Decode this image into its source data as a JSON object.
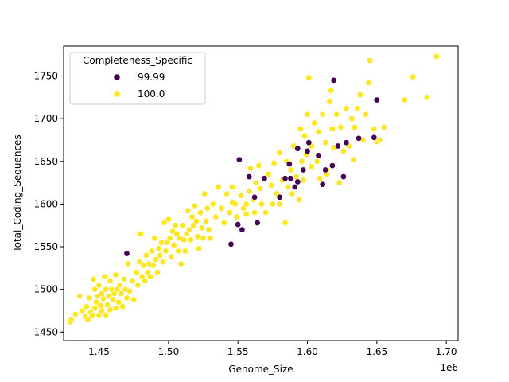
{
  "chart_data": {
    "type": "scatter",
    "xlabel": "Genome_Size",
    "ylabel": "Total_Coding_Sequences",
    "x_offset_label": "1e6",
    "xlim": [
      1.4245,
      1.7085
    ],
    "ylim": [
      1440,
      1785
    ],
    "x_ticks": [
      1.45,
      1.5,
      1.55,
      1.6,
      1.65,
      1.7
    ],
    "x_tick_labels": [
      "1.45",
      "1.50",
      "1.55",
      "1.60",
      "1.65",
      "1.70"
    ],
    "y_ticks": [
      1450,
      1500,
      1550,
      1600,
      1650,
      1700,
      1750
    ],
    "y_tick_labels": [
      "1450",
      "1500",
      "1550",
      "1600",
      "1650",
      "1700",
      "1750"
    ],
    "grid": false,
    "legend": {
      "title": "Completeness_Specific",
      "placement": "top-left",
      "entries": [
        "99.99",
        "100.0"
      ]
    },
    "series": [
      {
        "name": "99.99",
        "color": "#440154",
        "points": [
          [
            1.47,
            1542
          ],
          [
            1.545,
            1553
          ],
          [
            1.55,
            1576
          ],
          [
            1.553,
            1570
          ],
          [
            1.558,
            1632
          ],
          [
            1.562,
            1608
          ],
          [
            1.564,
            1578
          ],
          [
            1.551,
            1652
          ],
          [
            1.569,
            1630
          ],
          [
            1.58,
            1608
          ],
          [
            1.584,
            1630
          ],
          [
            1.588,
            1630
          ],
          [
            1.591,
            1620
          ],
          [
            1.593,
            1626
          ],
          [
            1.593,
            1665
          ],
          [
            1.597,
            1640
          ],
          [
            1.6,
            1662
          ],
          [
            1.601,
            1672
          ],
          [
            1.608,
            1657
          ],
          [
            1.611,
            1623
          ],
          [
            1.613,
            1640
          ],
          [
            1.618,
            1645
          ],
          [
            1.619,
            1745
          ],
          [
            1.622,
            1668
          ],
          [
            1.626,
            1632
          ],
          [
            1.628,
            1672
          ],
          [
            1.637,
            1677
          ],
          [
            1.648,
            1678
          ],
          [
            1.65,
            1722
          ],
          [
            1.587,
            1647
          ]
        ]
      },
      {
        "name": "100.0",
        "color": "#fde725",
        "points": [
          [
            1.429,
            1462
          ],
          [
            1.43,
            1465
          ],
          [
            1.433,
            1471
          ],
          [
            1.436,
            1492
          ],
          [
            1.438,
            1475
          ],
          [
            1.44,
            1468
          ],
          [
            1.441,
            1480
          ],
          [
            1.442,
            1465
          ],
          [
            1.443,
            1490
          ],
          [
            1.444,
            1473
          ],
          [
            1.445,
            1470
          ],
          [
            1.446,
            1512
          ],
          [
            1.447,
            1500
          ],
          [
            1.447,
            1478
          ],
          [
            1.448,
            1485
          ],
          [
            1.449,
            1492
          ],
          [
            1.45,
            1470
          ],
          [
            1.45,
            1505
          ],
          [
            1.451,
            1481
          ],
          [
            1.452,
            1495
          ],
          [
            1.452,
            1475
          ],
          [
            1.453,
            1489
          ],
          [
            1.454,
            1515
          ],
          [
            1.455,
            1470
          ],
          [
            1.455,
            1500
          ],
          [
            1.456,
            1482
          ],
          [
            1.457,
            1492
          ],
          [
            1.458,
            1476
          ],
          [
            1.458,
            1510
          ],
          [
            1.459,
            1500
          ],
          [
            1.46,
            1488
          ],
          [
            1.461,
            1495
          ],
          [
            1.462,
            1478
          ],
          [
            1.462,
            1517
          ],
          [
            1.463,
            1500
          ],
          [
            1.464,
            1485
          ],
          [
            1.465,
            1505
          ],
          [
            1.466,
            1495
          ],
          [
            1.467,
            1480
          ],
          [
            1.468,
            1512
          ],
          [
            1.469,
            1500
          ],
          [
            1.47,
            1490
          ],
          [
            1.471,
            1530
          ],
          [
            1.472,
            1498
          ],
          [
            1.474,
            1510
          ],
          [
            1.475,
            1488
          ],
          [
            1.477,
            1520
          ],
          [
            1.478,
            1505
          ],
          [
            1.479,
            1532
          ],
          [
            1.48,
            1565
          ],
          [
            1.481,
            1515
          ],
          [
            1.482,
            1528
          ],
          [
            1.483,
            1510
          ],
          [
            1.484,
            1540
          ],
          [
            1.485,
            1520
          ],
          [
            1.486,
            1530
          ],
          [
            1.487,
            1515
          ],
          [
            1.488,
            1545
          ],
          [
            1.489,
            1528
          ],
          [
            1.49,
            1560
          ],
          [
            1.491,
            1535
          ],
          [
            1.492,
            1520
          ],
          [
            1.493,
            1548
          ],
          [
            1.494,
            1540
          ],
          [
            1.495,
            1555
          ],
          [
            1.496,
            1532
          ],
          [
            1.497,
            1578
          ],
          [
            1.498,
            1545
          ],
          [
            1.499,
            1555
          ],
          [
            1.5,
            1582
          ],
          [
            1.501,
            1560
          ],
          [
            1.502,
            1538
          ],
          [
            1.503,
            1568
          ],
          [
            1.504,
            1552
          ],
          [
            1.505,
            1575
          ],
          [
            1.506,
            1565
          ],
          [
            1.507,
            1545
          ],
          [
            1.508,
            1560
          ],
          [
            1.509,
            1530
          ],
          [
            1.51,
            1575
          ],
          [
            1.511,
            1558
          ],
          [
            1.512,
            1545
          ],
          [
            1.513,
            1565
          ],
          [
            1.514,
            1592
          ],
          [
            1.515,
            1570
          ],
          [
            1.516,
            1558
          ],
          [
            1.517,
            1585
          ],
          [
            1.518,
            1575
          ],
          [
            1.519,
            1598
          ],
          [
            1.52,
            1580
          ],
          [
            1.521,
            1562
          ],
          [
            1.522,
            1548
          ],
          [
            1.523,
            1590
          ],
          [
            1.524,
            1572
          ],
          [
            1.525,
            1560
          ],
          [
            1.526,
            1612
          ],
          [
            1.527,
            1580
          ],
          [
            1.528,
            1595
          ],
          [
            1.529,
            1570
          ],
          [
            1.53,
            1560
          ],
          [
            1.532,
            1600
          ],
          [
            1.534,
            1585
          ],
          [
            1.536,
            1620
          ],
          [
            1.538,
            1595
          ],
          [
            1.54,
            1578
          ],
          [
            1.542,
            1612
          ],
          [
            1.544,
            1590
          ],
          [
            1.546,
            1620
          ],
          [
            1.548,
            1600
          ],
          [
            1.549,
            1585
          ],
          [
            1.552,
            1610
          ],
          [
            1.554,
            1595
          ],
          [
            1.556,
            1588
          ],
          [
            1.558,
            1615
          ],
          [
            1.559,
            1642
          ],
          [
            1.561,
            1605
          ],
          [
            1.563,
            1625
          ],
          [
            1.565,
            1645
          ],
          [
            1.567,
            1600
          ],
          [
            1.57,
            1590
          ],
          [
            1.572,
            1635
          ],
          [
            1.574,
            1622
          ],
          [
            1.576,
            1648
          ],
          [
            1.578,
            1612
          ],
          [
            1.58,
            1660
          ],
          [
            1.582,
            1628
          ],
          [
            1.584,
            1578
          ],
          [
            1.585,
            1650
          ],
          [
            1.586,
            1620
          ],
          [
            1.588,
            1640
          ],
          [
            1.589,
            1612
          ],
          [
            1.59,
            1668
          ],
          [
            1.592,
            1632
          ],
          [
            1.594,
            1605
          ],
          [
            1.595,
            1688
          ],
          [
            1.596,
            1650
          ],
          [
            1.598,
            1680
          ],
          [
            1.599,
            1658
          ],
          [
            1.6,
            1705
          ],
          [
            1.601,
            1748
          ],
          [
            1.603,
            1668
          ],
          [
            1.605,
            1695
          ],
          [
            1.607,
            1650
          ],
          [
            1.608,
            1685
          ],
          [
            1.609,
            1630
          ],
          [
            1.611,
            1705
          ],
          [
            1.613,
            1672
          ],
          [
            1.614,
            1640
          ],
          [
            1.616,
            1720
          ],
          [
            1.617,
            1733
          ],
          [
            1.618,
            1688
          ],
          [
            1.619,
            1666
          ],
          [
            1.621,
            1705
          ],
          [
            1.623,
            1625
          ],
          [
            1.624,
            1690
          ],
          [
            1.626,
            1662
          ],
          [
            1.628,
            1712
          ],
          [
            1.63,
            1668
          ],
          [
            1.632,
            1700
          ],
          [
            1.634,
            1690
          ],
          [
            1.636,
            1712
          ],
          [
            1.638,
            1728
          ],
          [
            1.64,
            1675
          ],
          [
            1.642,
            1705
          ],
          [
            1.644,
            1742
          ],
          [
            1.645,
            1768
          ],
          [
            1.648,
            1688
          ],
          [
            1.65,
            1673
          ],
          [
            1.652,
            1675
          ],
          [
            1.655,
            1690
          ],
          [
            1.67,
            1722
          ],
          [
            1.676,
            1749
          ],
          [
            1.686,
            1725
          ],
          [
            1.693,
            1773
          ],
          [
            1.556,
            1600
          ],
          [
            1.562,
            1590
          ],
          [
            1.575,
            1600
          ],
          [
            1.58,
            1600
          ],
          [
            1.566,
            1618
          ],
          [
            1.597,
            1628
          ],
          [
            1.603,
            1644
          ],
          [
            1.614,
            1635
          ],
          [
            1.633,
            1652
          ],
          [
            1.546,
            1602
          ]
        ]
      }
    ]
  }
}
